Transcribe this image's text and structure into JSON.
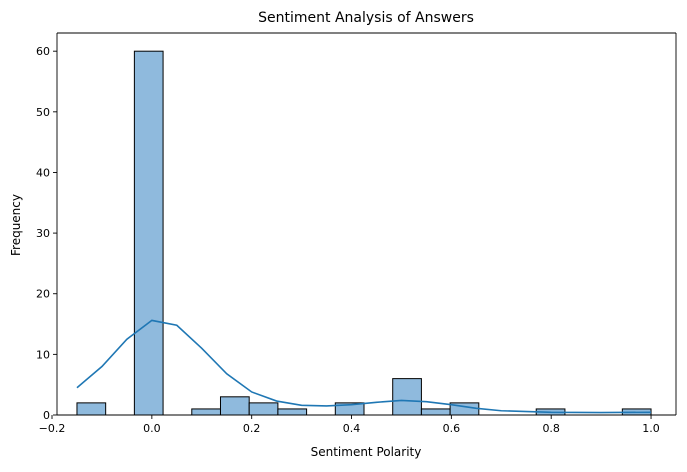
{
  "chart_data": {
    "type": "bar",
    "title": "Sentiment Analysis of Answers",
    "xlabel": "Sentiment Polarity",
    "ylabel": "Frequency",
    "xlim": [
      -0.19,
      1.05
    ],
    "ylim": [
      0,
      63
    ],
    "xticks": [
      -0.2,
      0.0,
      0.2,
      0.4,
      0.6,
      0.8,
      1.0
    ],
    "xtick_labels": [
      "−0.2",
      "0.0",
      "0.2",
      "0.4",
      "0.6",
      "0.8",
      "1.0"
    ],
    "yticks": [
      0,
      10,
      20,
      30,
      40,
      50,
      60
    ],
    "ytick_labels": [
      "0",
      "10",
      "20",
      "30",
      "40",
      "50",
      "60"
    ],
    "bins": [
      {
        "x0": -0.15,
        "x1": -0.0925,
        "count": 2
      },
      {
        "x0": -0.0925,
        "x1": -0.035,
        "count": 0
      },
      {
        "x0": -0.035,
        "x1": 0.0225,
        "count": 60
      },
      {
        "x0": 0.0225,
        "x1": 0.08,
        "count": 0
      },
      {
        "x0": 0.08,
        "x1": 0.1375,
        "count": 1
      },
      {
        "x0": 0.1375,
        "x1": 0.195,
        "count": 3
      },
      {
        "x0": 0.195,
        "x1": 0.2525,
        "count": 2
      },
      {
        "x0": 0.2525,
        "x1": 0.31,
        "count": 1
      },
      {
        "x0": 0.31,
        "x1": 0.3675,
        "count": 0
      },
      {
        "x0": 0.3675,
        "x1": 0.425,
        "count": 2
      },
      {
        "x0": 0.425,
        "x1": 0.4825,
        "count": 0
      },
      {
        "x0": 0.4825,
        "x1": 0.54,
        "count": 6
      },
      {
        "x0": 0.54,
        "x1": 0.5975,
        "count": 1
      },
      {
        "x0": 0.5975,
        "x1": 0.655,
        "count": 2
      },
      {
        "x0": 0.655,
        "x1": 0.7125,
        "count": 0
      },
      {
        "x0": 0.7125,
        "x1": 0.77,
        "count": 0
      },
      {
        "x0": 0.77,
        "x1": 0.8275,
        "count": 1
      },
      {
        "x0": 0.8275,
        "x1": 0.885,
        "count": 0
      },
      {
        "x0": 0.885,
        "x1": 0.9425,
        "count": 0
      },
      {
        "x0": 0.9425,
        "x1": 1.0,
        "count": 1
      }
    ],
    "kde": {
      "x": [
        -0.15,
        -0.1,
        -0.05,
        0.0,
        0.05,
        0.1,
        0.15,
        0.2,
        0.25,
        0.3,
        0.35,
        0.4,
        0.45,
        0.5,
        0.55,
        0.6,
        0.65,
        0.7,
        0.8,
        0.9,
        1.0
      ],
      "y": [
        4.5,
        8.0,
        12.5,
        15.6,
        14.8,
        11.0,
        6.8,
        3.8,
        2.3,
        1.6,
        1.5,
        1.7,
        2.1,
        2.4,
        2.2,
        1.7,
        1.1,
        0.7,
        0.45,
        0.4,
        0.45
      ]
    },
    "grid": false,
    "legend": "none"
  }
}
